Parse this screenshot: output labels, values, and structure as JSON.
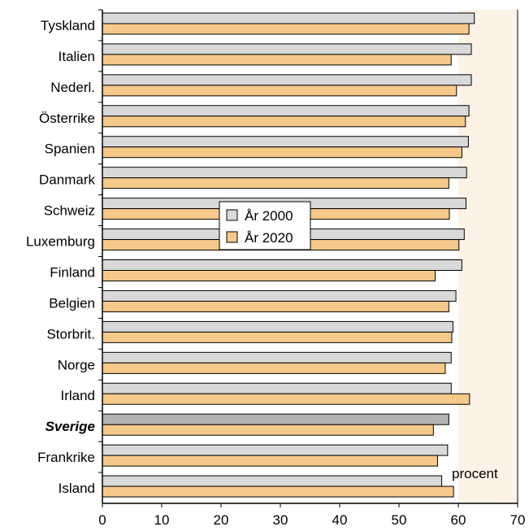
{
  "chart_data": {
    "type": "bar",
    "orientation": "horizontal",
    "categories": [
      "Tyskland",
      "Italien",
      "Nederl.",
      "Österrike",
      "Spanien",
      "Danmark",
      "Schweiz",
      "Luxemburg",
      "Finland",
      "Belgien",
      "Storbrit.",
      "Norge",
      "Irland",
      "Sverige",
      "Frankrike",
      "Island"
    ],
    "highlight_category": "Sverige",
    "series": [
      {
        "name": "År 2000",
        "color": "#d9d9d9",
        "highlight_color": "#b3b3b3",
        "values": [
          62.7,
          62.2,
          62.2,
          61.8,
          61.7,
          61.4,
          61.3,
          61.0,
          60.6,
          59.6,
          59.1,
          58.8,
          58.8,
          58.4,
          58.2,
          57.2
        ]
      },
      {
        "name": "År 2020",
        "color": "#f5c98a",
        "values": [
          61.8,
          58.8,
          59.7,
          61.2,
          60.6,
          58.4,
          58.5,
          60.1,
          56.1,
          58.4,
          58.9,
          57.8,
          61.9,
          55.8,
          56.5,
          59.2
        ]
      }
    ],
    "x_ticks": [
      "0",
      "10",
      "20",
      "30",
      "40",
      "50",
      "60",
      "70"
    ],
    "xlim": [
      0,
      70
    ],
    "shaded_region": [
      60,
      70
    ],
    "shaded_color": "#fdf2e6",
    "unit_label": "procent",
    "legend_position": "center-left",
    "grid": false
  }
}
